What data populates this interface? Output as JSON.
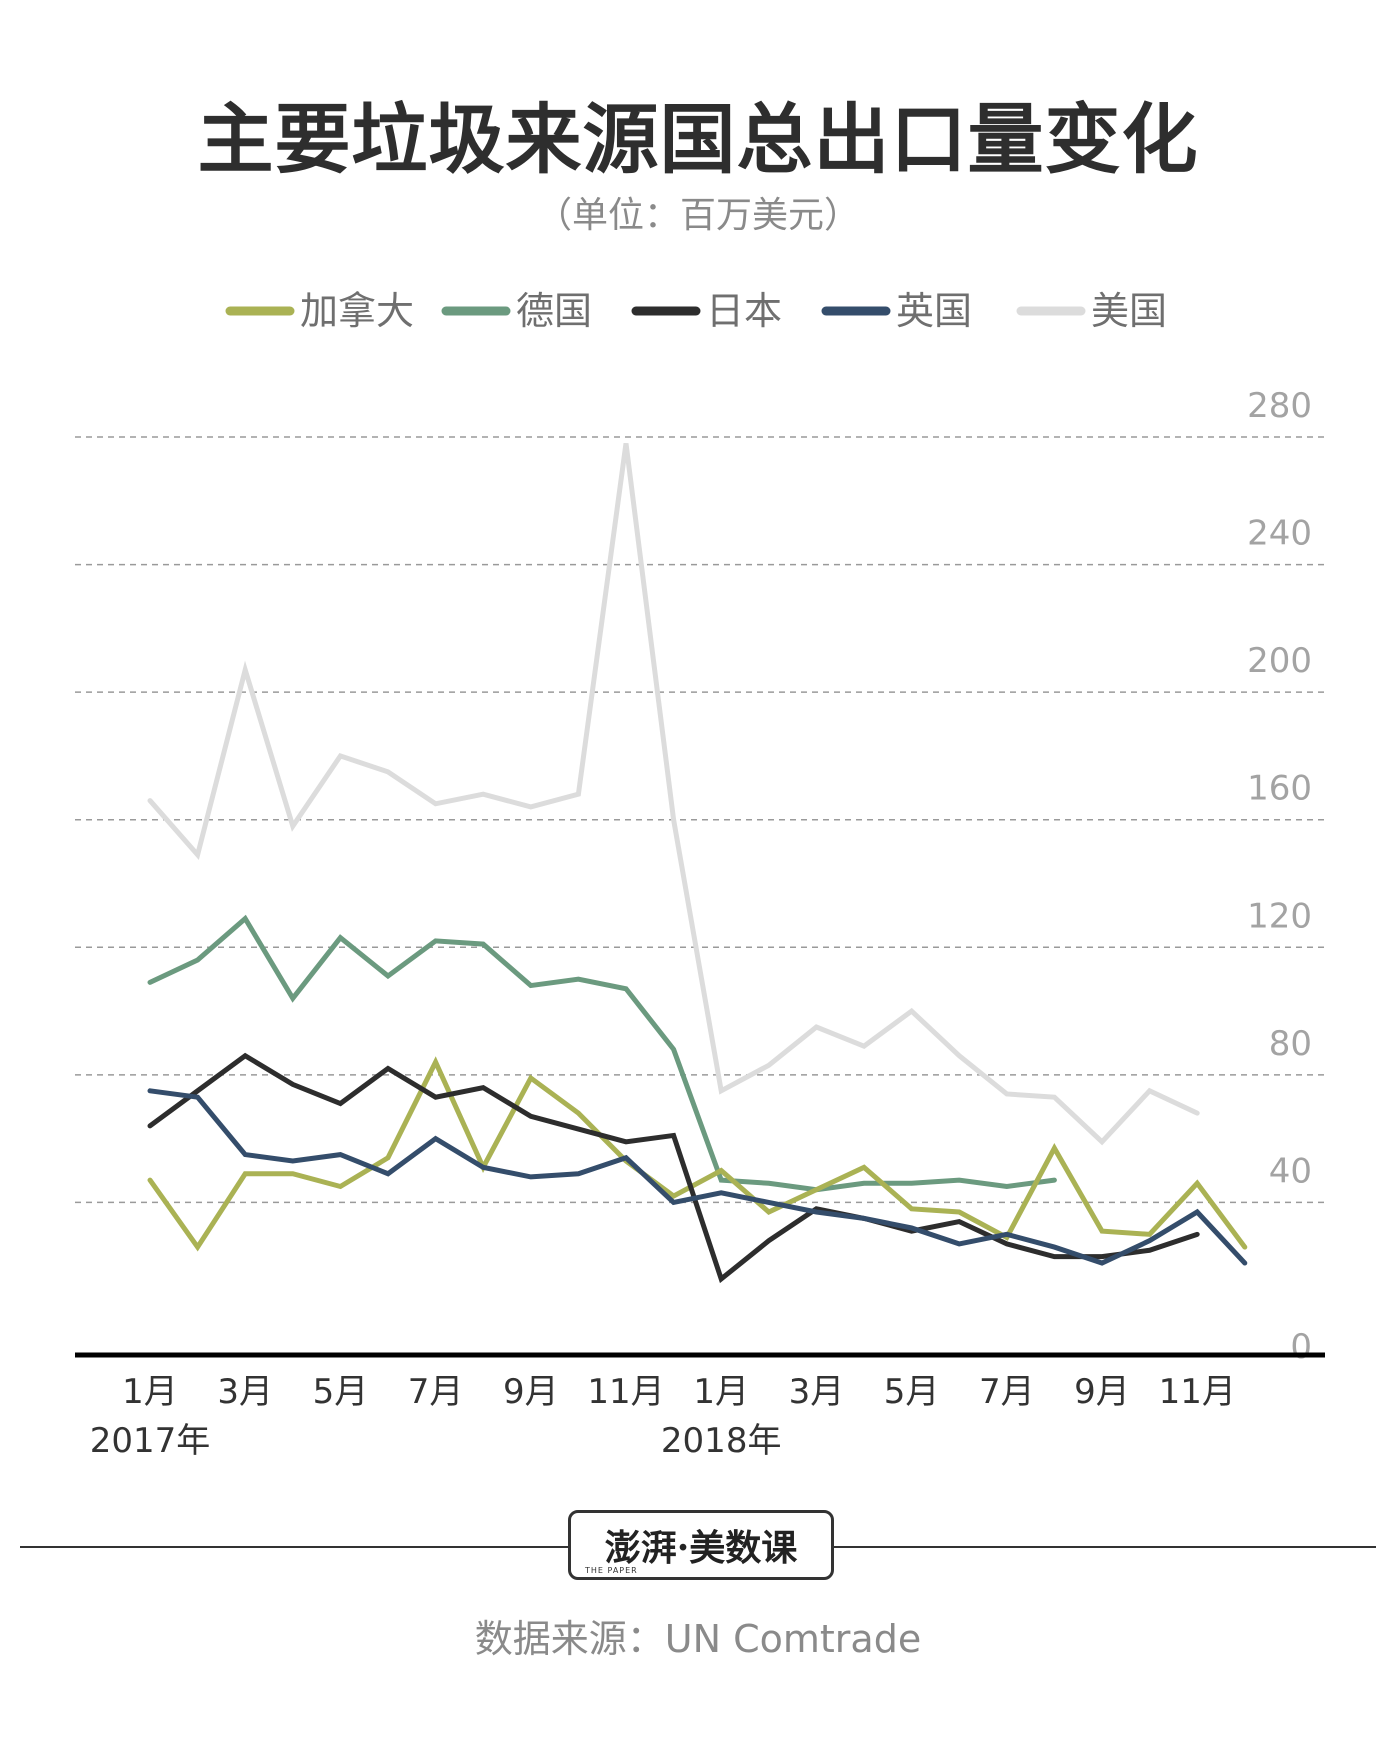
{
  "title": "主要垃圾来源国总出口量变化",
  "subtitle": "（单位：百万美元）",
  "source": "数据来源：UN Comtrade",
  "logo": {
    "main": "澎湃·美数课",
    "sub": "THE PAPER"
  },
  "chart_data": {
    "type": "line",
    "title": "主要垃圾来源国总出口量变化",
    "ylabel": "百万美元",
    "ylim": [
      0,
      280
    ],
    "yticks": [
      0,
      40,
      80,
      120,
      160,
      200,
      240,
      280
    ],
    "xticks": [
      {
        "index": 0,
        "label": "1月",
        "year": "2017年"
      },
      {
        "index": 2,
        "label": "3月"
      },
      {
        "index": 4,
        "label": "5月"
      },
      {
        "index": 6,
        "label": "7月"
      },
      {
        "index": 8,
        "label": "9月"
      },
      {
        "index": 10,
        "label": "11月"
      },
      {
        "index": 12,
        "label": "1月",
        "year": "2018年"
      },
      {
        "index": 14,
        "label": "3月"
      },
      {
        "index": 16,
        "label": "5月"
      },
      {
        "index": 18,
        "label": "7月"
      },
      {
        "index": 20,
        "label": "9月"
      },
      {
        "index": 22,
        "label": "11月"
      }
    ],
    "legend_position": "top",
    "series": [
      {
        "name": "美国",
        "color": "#dcdcdc",
        "values": [
          166,
          149,
          207,
          158,
          180,
          175,
          165,
          168,
          164,
          168,
          278,
          160,
          75,
          83,
          95,
          89,
          100,
          86,
          74,
          73,
          59,
          75,
          68
        ]
      },
      {
        "name": "德国",
        "color": "#6b9a7f",
        "values": [
          109,
          116,
          129,
          104,
          123,
          111,
          122,
          121,
          108,
          110,
          107,
          88,
          47,
          46,
          44,
          46,
          46,
          47,
          45,
          47
        ]
      },
      {
        "name": "加拿大",
        "color": "#aab254",
        "values": [
          47,
          26,
          49,
          49,
          45,
          54,
          84,
          51,
          79,
          68,
          53,
          42,
          50,
          37,
          44,
          51,
          38,
          37,
          29,
          57,
          31,
          30,
          46,
          26
        ]
      },
      {
        "name": "日本",
        "color": "#2d2d2d",
        "values": [
          64,
          75,
          86,
          77,
          71,
          82,
          73,
          76,
          67,
          63,
          59,
          61,
          16,
          28,
          38,
          35,
          31,
          34,
          27,
          23,
          23,
          25,
          30
        ]
      },
      {
        "name": "英国",
        "color": "#344d6b",
        "values": [
          75,
          73,
          55,
          53,
          55,
          49,
          60,
          51,
          48,
          49,
          54,
          40,
          43,
          40,
          37,
          35,
          32,
          27,
          30,
          26,
          21,
          28,
          37,
          21
        ]
      }
    ],
    "legend": [
      "加拿大",
      "德国",
      "日本",
      "英国",
      "美国"
    ]
  }
}
